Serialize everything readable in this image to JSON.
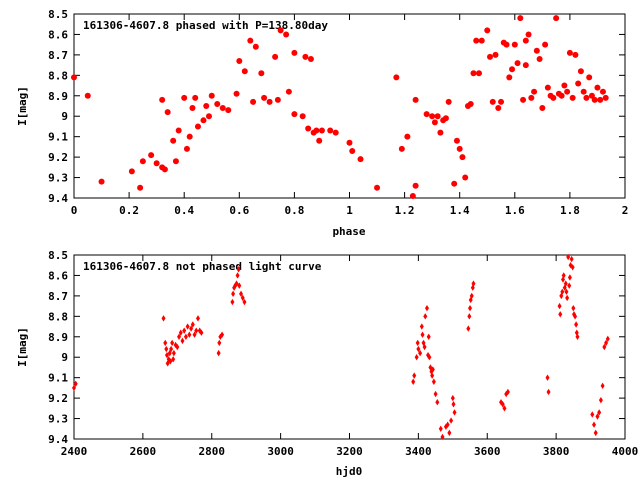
{
  "colors": {
    "points": "#ff0000",
    "axes": "#000000",
    "background": "#ffffff"
  },
  "chart_data": [
    {
      "type": "scatter",
      "title": "161306-4607.8 phased with P=138.80day",
      "xlabel": "phase",
      "ylabel": "I[mag]",
      "xlim": [
        0,
        2
      ],
      "ylim": [
        8.5,
        9.4
      ],
      "y_inverted": true,
      "grid": false,
      "marker": "asterisk",
      "xticks": [
        "0",
        "0.2",
        "0.4",
        "0.6",
        "0.8",
        "1",
        "1.2",
        "1.4",
        "1.6",
        "1.8",
        "2"
      ],
      "yticks": [
        "8.5",
        "8.6",
        "8.7",
        "8.8",
        "8.9",
        "9",
        "9.1",
        "9.2",
        "9.3",
        "9.4"
      ],
      "points": [
        [
          0.0,
          8.81
        ],
        [
          0.05,
          8.9
        ],
        [
          0.1,
          9.32
        ],
        [
          0.21,
          9.27
        ],
        [
          0.24,
          9.35
        ],
        [
          0.25,
          9.22
        ],
        [
          0.28,
          9.19
        ],
        [
          0.3,
          9.23
        ],
        [
          0.32,
          9.25
        ],
        [
          0.33,
          9.26
        ],
        [
          0.32,
          8.92
        ],
        [
          0.34,
          8.98
        ],
        [
          0.36,
          9.12
        ],
        [
          0.37,
          9.22
        ],
        [
          0.38,
          9.07
        ],
        [
          0.4,
          8.91
        ],
        [
          0.41,
          9.16
        ],
        [
          0.42,
          9.1
        ],
        [
          0.43,
          8.96
        ],
        [
          0.44,
          8.91
        ],
        [
          0.45,
          9.05
        ],
        [
          0.47,
          9.02
        ],
        [
          0.48,
          8.95
        ],
        [
          0.49,
          9.0
        ],
        [
          0.5,
          8.9
        ],
        [
          0.52,
          8.94
        ],
        [
          0.54,
          8.96
        ],
        [
          0.56,
          8.97
        ],
        [
          0.59,
          8.89
        ],
        [
          0.6,
          8.73
        ],
        [
          0.62,
          8.78
        ],
        [
          0.64,
          8.63
        ],
        [
          0.65,
          8.93
        ],
        [
          0.66,
          8.66
        ],
        [
          0.68,
          8.79
        ],
        [
          0.69,
          8.91
        ],
        [
          0.71,
          8.93
        ],
        [
          0.73,
          8.71
        ],
        [
          0.74,
          8.92
        ],
        [
          0.75,
          8.58
        ],
        [
          0.77,
          8.6
        ],
        [
          0.78,
          8.88
        ],
        [
          0.8,
          8.99
        ],
        [
          0.8,
          8.69
        ],
        [
          0.83,
          9.0
        ],
        [
          0.84,
          8.71
        ],
        [
          0.85,
          9.06
        ],
        [
          0.86,
          8.72
        ],
        [
          0.87,
          9.08
        ],
        [
          0.88,
          9.07
        ],
        [
          0.89,
          9.12
        ],
        [
          0.9,
          9.07
        ],
        [
          0.93,
          9.07
        ],
        [
          0.95,
          9.08
        ],
        [
          1.0,
          9.13
        ],
        [
          1.01,
          9.17
        ],
        [
          1.04,
          9.21
        ],
        [
          1.1,
          9.35
        ],
        [
          1.17,
          8.81
        ],
        [
          1.19,
          9.16
        ],
        [
          1.21,
          9.1
        ],
        [
          1.23,
          9.39
        ],
        [
          1.24,
          9.34
        ],
        [
          1.24,
          8.92
        ],
        [
          1.28,
          8.99
        ],
        [
          1.3,
          9.0
        ],
        [
          1.31,
          9.03
        ],
        [
          1.32,
          9.0
        ],
        [
          1.33,
          9.08
        ],
        [
          1.34,
          9.02
        ],
        [
          1.35,
          9.01
        ],
        [
          1.36,
          8.93
        ],
        [
          1.38,
          9.33
        ],
        [
          1.39,
          9.12
        ],
        [
          1.4,
          9.16
        ],
        [
          1.41,
          9.2
        ],
        [
          1.42,
          9.3
        ],
        [
          1.43,
          8.95
        ],
        [
          1.44,
          8.94
        ],
        [
          1.45,
          8.79
        ],
        [
          1.46,
          8.63
        ],
        [
          1.47,
          8.79
        ],
        [
          1.48,
          8.63
        ],
        [
          1.5,
          8.58
        ],
        [
          1.51,
          8.71
        ],
        [
          1.52,
          8.93
        ],
        [
          1.53,
          8.7
        ],
        [
          1.54,
          8.96
        ],
        [
          1.55,
          8.93
        ],
        [
          1.56,
          8.64
        ],
        [
          1.57,
          8.65
        ],
        [
          1.58,
          8.81
        ],
        [
          1.59,
          8.77
        ],
        [
          1.6,
          8.65
        ],
        [
          1.61,
          8.74
        ],
        [
          1.62,
          8.52
        ],
        [
          1.63,
          8.92
        ],
        [
          1.64,
          8.75
        ],
        [
          1.64,
          8.63
        ],
        [
          1.65,
          8.6
        ],
        [
          1.66,
          8.91
        ],
        [
          1.67,
          8.88
        ],
        [
          1.68,
          8.68
        ],
        [
          1.69,
          8.72
        ],
        [
          1.7,
          8.96
        ],
        [
          1.71,
          8.65
        ],
        [
          1.72,
          8.86
        ],
        [
          1.73,
          8.9
        ],
        [
          1.74,
          8.91
        ],
        [
          1.75,
          8.52
        ],
        [
          1.76,
          8.89
        ],
        [
          1.77,
          8.9
        ],
        [
          1.78,
          8.85
        ],
        [
          1.79,
          8.88
        ],
        [
          1.8,
          8.69
        ],
        [
          1.81,
          8.91
        ],
        [
          1.82,
          8.7
        ],
        [
          1.83,
          8.84
        ],
        [
          1.84,
          8.78
        ],
        [
          1.85,
          8.88
        ],
        [
          1.86,
          8.91
        ],
        [
          1.87,
          8.81
        ],
        [
          1.88,
          8.9
        ],
        [
          1.89,
          8.92
        ],
        [
          1.9,
          8.86
        ],
        [
          1.91,
          8.92
        ],
        [
          1.92,
          8.88
        ],
        [
          1.93,
          8.91
        ]
      ]
    },
    {
      "type": "scatter",
      "title": "161306-4607.8 not phased light curve",
      "xlabel": "hjd0",
      "ylabel": "I[mag]",
      "xlim": [
        2400,
        4000
      ],
      "ylim": [
        8.5,
        9.4
      ],
      "y_inverted": true,
      "grid": false,
      "marker": "diamond",
      "xticks": [
        "2400",
        "2600",
        "2800",
        "3000",
        "3200",
        "3400",
        "3600",
        "3800",
        "4000"
      ],
      "yticks": [
        "8.5",
        "8.6",
        "8.7",
        "8.8",
        "8.9",
        "9",
        "9.1",
        "9.2",
        "9.3",
        "9.4"
      ],
      "points": [
        [
          2400,
          9.15
        ],
        [
          2405,
          9.13
        ],
        [
          2660,
          8.81
        ],
        [
          2665,
          8.93
        ],
        [
          2668,
          8.96
        ],
        [
          2670,
          8.99
        ],
        [
          2672,
          9.03
        ],
        [
          2675,
          9.01
        ],
        [
          2678,
          8.98
        ],
        [
          2680,
          9.02
        ],
        [
          2682,
          8.96
        ],
        [
          2685,
          8.93
        ],
        [
          2688,
          9.01
        ],
        [
          2690,
          8.98
        ],
        [
          2695,
          8.94
        ],
        [
          2700,
          8.95
        ],
        [
          2705,
          8.9
        ],
        [
          2710,
          8.88
        ],
        [
          2715,
          8.92
        ],
        [
          2720,
          8.87
        ],
        [
          2725,
          8.9
        ],
        [
          2730,
          8.85
        ],
        [
          2735,
          8.89
        ],
        [
          2740,
          8.86
        ],
        [
          2745,
          8.84
        ],
        [
          2750,
          8.89
        ],
        [
          2755,
          8.87
        ],
        [
          2760,
          8.81
        ],
        [
          2765,
          8.87
        ],
        [
          2770,
          8.88
        ],
        [
          2820,
          8.98
        ],
        [
          2822,
          8.93
        ],
        [
          2825,
          8.9
        ],
        [
          2830,
          8.89
        ],
        [
          2860,
          8.73
        ],
        [
          2862,
          8.69
        ],
        [
          2865,
          8.66
        ],
        [
          2868,
          8.65
        ],
        [
          2872,
          8.64
        ],
        [
          2875,
          8.6
        ],
        [
          2878,
          8.57
        ],
        [
          2880,
          8.65
        ],
        [
          2885,
          8.69
        ],
        [
          2890,
          8.71
        ],
        [
          2895,
          8.73
        ],
        [
          3385,
          9.12
        ],
        [
          3388,
          9.09
        ],
        [
          3395,
          9.0
        ],
        [
          3398,
          8.93
        ],
        [
          3400,
          8.96
        ],
        [
          3405,
          8.98
        ],
        [
          3410,
          8.85
        ],
        [
          3412,
          8.89
        ],
        [
          3415,
          8.93
        ],
        [
          3418,
          8.95
        ],
        [
          3420,
          8.8
        ],
        [
          3425,
          8.76
        ],
        [
          3428,
          8.99
        ],
        [
          3430,
          8.9
        ],
        [
          3432,
          9.0
        ],
        [
          3435,
          9.05
        ],
        [
          3438,
          9.07
        ],
        [
          3440,
          9.09
        ],
        [
          3442,
          9.06
        ],
        [
          3445,
          9.12
        ],
        [
          3450,
          9.18
        ],
        [
          3455,
          9.22
        ],
        [
          3465,
          9.35
        ],
        [
          3470,
          9.39
        ],
        [
          3480,
          9.34
        ],
        [
          3485,
          9.33
        ],
        [
          3490,
          9.37
        ],
        [
          3495,
          9.31
        ],
        [
          3500,
          9.2
        ],
        [
          3502,
          9.23
        ],
        [
          3505,
          9.27
        ],
        [
          3545,
          8.86
        ],
        [
          3548,
          8.8
        ],
        [
          3550,
          8.76
        ],
        [
          3552,
          8.72
        ],
        [
          3555,
          8.7
        ],
        [
          3558,
          8.66
        ],
        [
          3560,
          8.64
        ],
        [
          3640,
          9.22
        ],
        [
          3645,
          9.23
        ],
        [
          3650,
          9.25
        ],
        [
          3655,
          9.18
        ],
        [
          3660,
          9.17
        ],
        [
          3775,
          9.1
        ],
        [
          3778,
          9.17
        ],
        [
          3810,
          8.75
        ],
        [
          3812,
          8.79
        ],
        [
          3815,
          8.7
        ],
        [
          3818,
          8.68
        ],
        [
          3820,
          8.62
        ],
        [
          3822,
          8.6
        ],
        [
          3825,
          8.66
        ],
        [
          3828,
          8.64
        ],
        [
          3830,
          8.68
        ],
        [
          3832,
          8.71
        ],
        [
          3835,
          8.51
        ],
        [
          3838,
          8.65
        ],
        [
          3840,
          8.61
        ],
        [
          3842,
          8.55
        ],
        [
          3845,
          8.52
        ],
        [
          3848,
          8.56
        ],
        [
          3850,
          8.76
        ],
        [
          3852,
          8.79
        ],
        [
          3855,
          8.8
        ],
        [
          3858,
          8.84
        ],
        [
          3860,
          8.88
        ],
        [
          3862,
          8.9
        ],
        [
          3905,
          9.28
        ],
        [
          3910,
          9.33
        ],
        [
          3915,
          9.37
        ],
        [
          3920,
          9.29
        ],
        [
          3925,
          9.27
        ],
        [
          3930,
          9.21
        ],
        [
          3935,
          9.14
        ],
        [
          3940,
          8.95
        ],
        [
          3945,
          8.93
        ],
        [
          3950,
          8.91
        ]
      ]
    }
  ]
}
